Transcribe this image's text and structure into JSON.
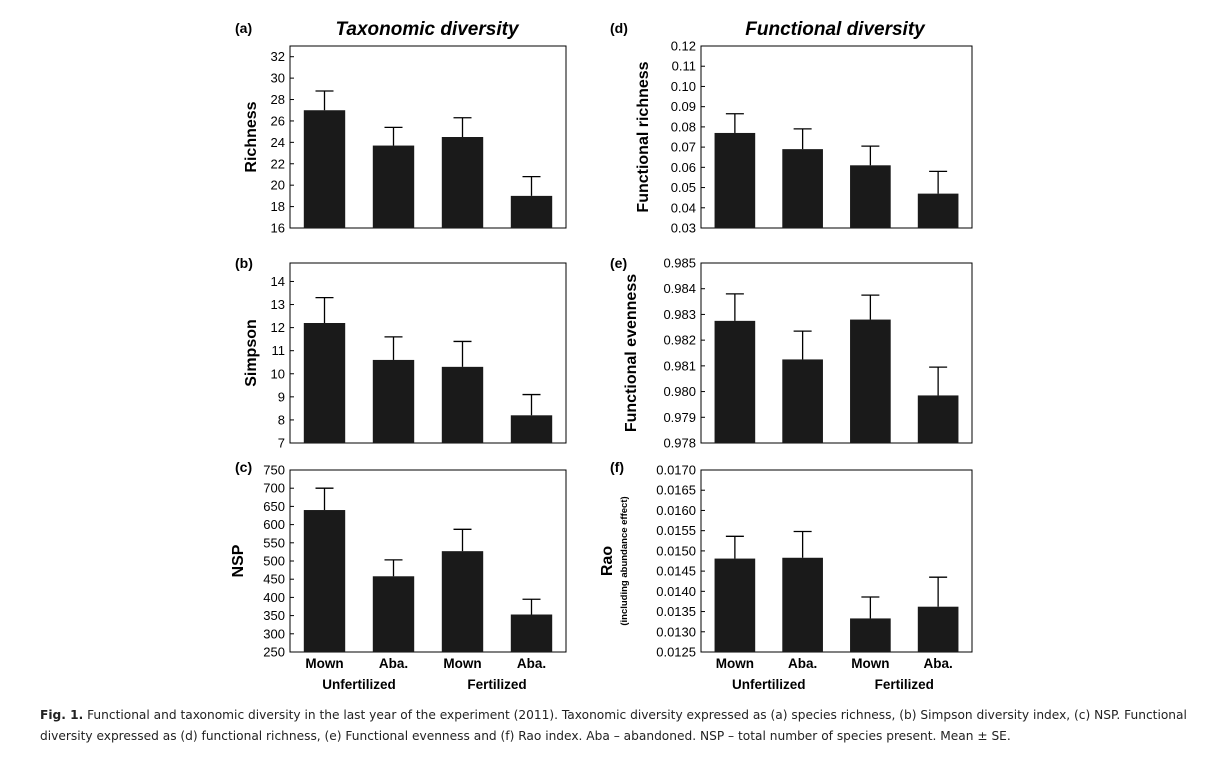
{
  "column_titles": {
    "left": "Taxonomic diversity",
    "right": "Functional diversity"
  },
  "x_axis": {
    "categories": [
      "Mown",
      "Aba.",
      "Mown",
      "Aba."
    ],
    "groups": [
      "Unfertilized",
      "Fertilized"
    ]
  },
  "caption": {
    "label": "Fig. 1.",
    "text": "Functional and taxonomic diversity in the last year of the experiment (2011). Taxonomic diversity expressed as (a) species richness, (b) Simpson diversity index, (c) NSP. Functional diversity expressed as (d) functional richness, (e) Functional evenness and (f) Rao index. Aba – abandoned. NSP – total number of species present. Mean ± SE."
  },
  "chart_data": [
    {
      "type": "bar",
      "panel": "(a)",
      "ylabel": "Richness",
      "ylabel_sub": "",
      "categories": [
        "Mown",
        "Aba.",
        "Mown",
        "Aba."
      ],
      "values": [
        27.0,
        23.7,
        24.5,
        19.0
      ],
      "errors": [
        1.8,
        1.7,
        1.8,
        1.8
      ],
      "ylim": [
        16,
        33
      ],
      "yticks": [
        "16",
        "18",
        "20",
        "22",
        "24",
        "26",
        "28",
        "30",
        "32"
      ]
    },
    {
      "type": "bar",
      "panel": "(b)",
      "ylabel": "Simpson",
      "ylabel_sub": "",
      "categories": [
        "Mown",
        "Aba.",
        "Mown",
        "Aba."
      ],
      "values": [
        12.2,
        10.6,
        10.3,
        8.2
      ],
      "errors": [
        1.1,
        1.0,
        1.1,
        0.9
      ],
      "ylim": [
        7,
        14.8
      ],
      "yticks": [
        "7",
        "8",
        "9",
        "10",
        "11",
        "12",
        "13",
        "14"
      ]
    },
    {
      "type": "bar",
      "panel": "(c)",
      "ylabel": "NSP",
      "ylabel_sub": "",
      "categories": [
        "Mown",
        "Aba.",
        "Mown",
        "Aba."
      ],
      "values": [
        640,
        458,
        527,
        353
      ],
      "errors": [
        60,
        45,
        60,
        42
      ],
      "ylim": [
        250,
        750
      ],
      "yticks": [
        "250",
        "300",
        "350",
        "400",
        "450",
        "500",
        "550",
        "600",
        "650",
        "700",
        "750"
      ]
    },
    {
      "type": "bar",
      "panel": "(d)",
      "ylabel": "Functional richness",
      "ylabel_sub": "",
      "categories": [
        "Mown",
        "Aba.",
        "Mown",
        "Aba."
      ],
      "values": [
        0.077,
        0.069,
        0.061,
        0.047
      ],
      "errors": [
        0.0095,
        0.01,
        0.0095,
        0.011
      ],
      "ylim": [
        0.03,
        0.12
      ],
      "yticks": [
        "0.03",
        "0.04",
        "0.05",
        "0.06",
        "0.07",
        "0.08",
        "0.09",
        "0.10",
        "0.11",
        "0.12"
      ]
    },
    {
      "type": "bar",
      "panel": "(e)",
      "ylabel": "Functional evenness",
      "ylabel_sub": "",
      "categories": [
        "Mown",
        "Aba.",
        "Mown",
        "Aba."
      ],
      "values": [
        0.98275,
        0.98125,
        0.9828,
        0.97985
      ],
      "errors": [
        0.00105,
        0.0011,
        0.00095,
        0.0011
      ],
      "ylim": [
        0.978,
        0.985
      ],
      "yticks": [
        "0.978",
        "0.979",
        "0.980",
        "0.981",
        "0.982",
        "0.983",
        "0.984",
        "0.985"
      ]
    },
    {
      "type": "bar",
      "panel": "(f)",
      "ylabel": "Rao",
      "ylabel_sub": "(including abundance effect)",
      "categories": [
        "Mown",
        "Aba.",
        "Mown",
        "Aba."
      ],
      "values": [
        0.01481,
        0.01483,
        0.01333,
        0.01362
      ],
      "errors": [
        0.00055,
        0.00065,
        0.00053,
        0.00073
      ],
      "ylim": [
        0.0125,
        0.017
      ],
      "yticks": [
        "0.0125",
        "0.0130",
        "0.0135",
        "0.0140",
        "0.0145",
        "0.0150",
        "0.0155",
        "0.0160",
        "0.0165",
        "0.0170"
      ]
    }
  ]
}
